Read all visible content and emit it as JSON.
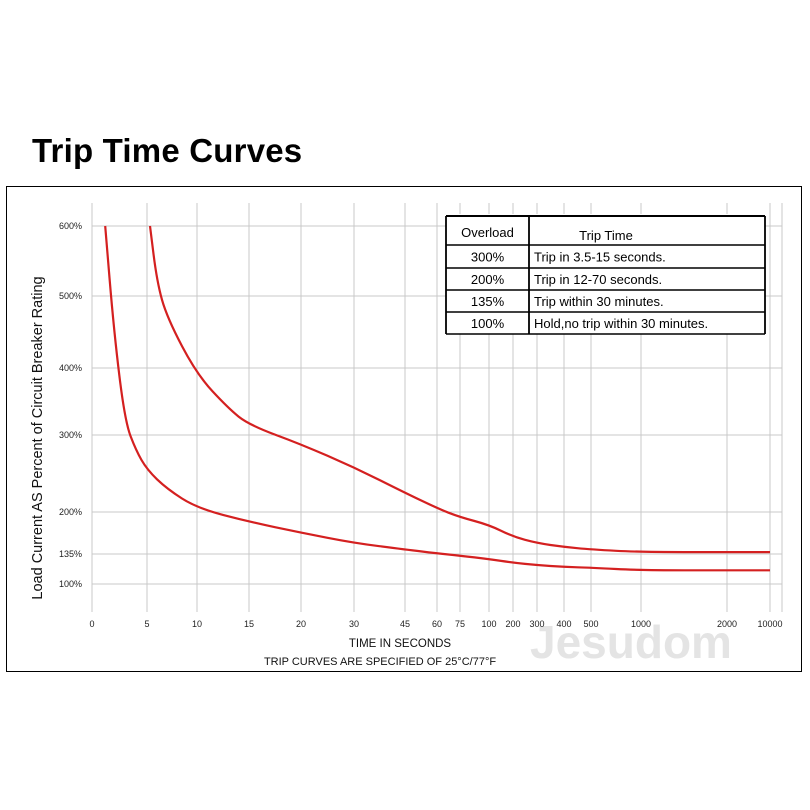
{
  "title": "Trip Time Curves",
  "watermark": "Jesudom",
  "chart_data": {
    "type": "line",
    "ylabel": "Load Current AS Percent of Circuit Breaker Rating",
    "xlabel": "TIME IN SECONDS",
    "note": "TRIP CURVES ARE SPECIFIED OF 25°C/77°F",
    "x_ticks": [
      "0",
      "5",
      "10",
      "15",
      "20",
      "30",
      "45",
      "60",
      "75",
      "100",
      "200",
      "300",
      "400",
      "500",
      "1000",
      "2000",
      "10000"
    ],
    "y_ticks": [
      "600%",
      "500%",
      "400%",
      "300%",
      "200%",
      "135%",
      "100%"
    ],
    "grid": true,
    "series": [
      {
        "color": "#d42020",
        "points": [
          [
            1.2,
            600
          ],
          [
            2,
            450
          ],
          [
            3,
            320
          ],
          [
            4,
            280
          ],
          [
            5,
            255
          ],
          [
            7,
            230
          ],
          [
            10,
            205
          ],
          [
            15,
            185
          ],
          [
            20,
            168
          ],
          [
            30,
            152
          ],
          [
            45,
            142
          ],
          [
            60,
            136
          ],
          [
            75,
            133
          ],
          [
            100,
            129
          ],
          [
            200,
            125
          ],
          [
            300,
            122
          ],
          [
            400,
            120
          ],
          [
            500,
            119
          ],
          [
            1000,
            116
          ],
          [
            2000,
            116
          ],
          [
            10000,
            116
          ]
        ]
      },
      {
        "color": "#d42020",
        "points": [
          [
            5.3,
            600
          ],
          [
            6,
            520
          ],
          [
            7,
            470
          ],
          [
            10,
            390
          ],
          [
            13,
            340
          ],
          [
            15,
            315
          ],
          [
            20,
            288
          ],
          [
            30,
            258
          ],
          [
            45,
            225
          ],
          [
            60,
            205
          ],
          [
            75,
            192
          ],
          [
            100,
            180
          ],
          [
            200,
            162
          ],
          [
            300,
            152
          ],
          [
            400,
            146
          ],
          [
            500,
            142
          ],
          [
            1000,
            138
          ],
          [
            2000,
            138
          ],
          [
            10000,
            138
          ]
        ]
      }
    ]
  },
  "legend_table": {
    "headers": [
      "Overload",
      "Trip Time"
    ],
    "rows": [
      [
        "300%",
        "Trip in 3.5-15 seconds."
      ],
      [
        "200%",
        "Trip in 12-70 seconds."
      ],
      [
        "135%",
        "Trip within 30 minutes."
      ],
      [
        "100%",
        "Hold,no trip within 30 minutes."
      ]
    ]
  }
}
